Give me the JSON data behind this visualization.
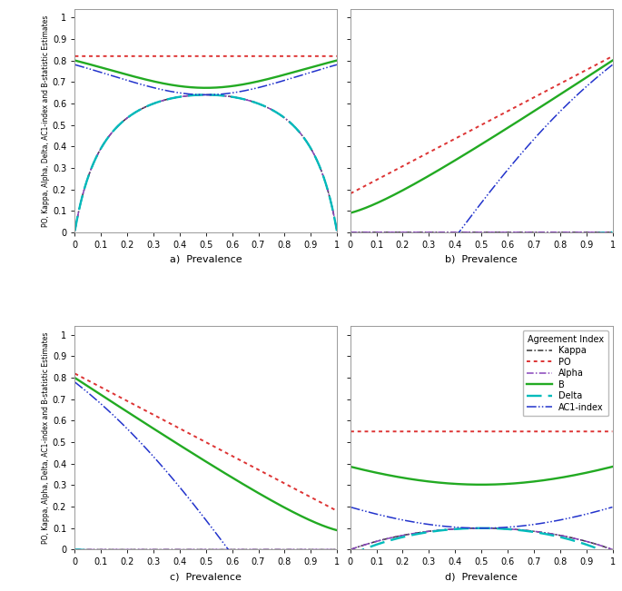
{
  "Kappa_color": "#333333",
  "PO_color": "#dd3333",
  "Alpha_color": "#8844bb",
  "B_color": "#22aa22",
  "Delta_color": "#00bbbb",
  "AC1_color": "#2233cc",
  "ylabel": "PO, Kappa, Alpha, Delta, AC1-index and B-statistic Estimates",
  "xlabel": "Prevalence",
  "subplot_labels": [
    "a)",
    "b)",
    "c)",
    "d)"
  ]
}
